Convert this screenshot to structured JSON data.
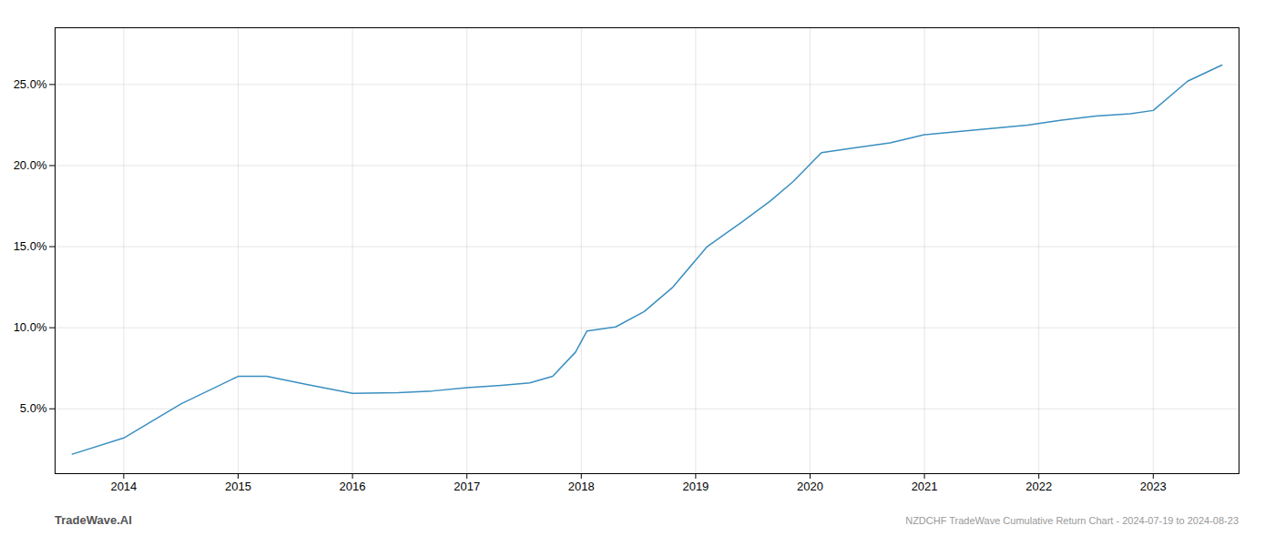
{
  "chart_data": {
    "type": "line",
    "title": "NZDCHF TradeWave Cumulative Return Chart - 2024-07-19 to 2024-08-23",
    "annotations": [
      "TradeWave.AI"
    ],
    "x": [
      2013.55,
      2014.0,
      2014.5,
      2015.0,
      2015.25,
      2015.6,
      2016.0,
      2016.4,
      2016.7,
      2017.0,
      2017.3,
      2017.55,
      2017.75,
      2017.95,
      2018.05,
      2018.3,
      2018.55,
      2018.8,
      2019.1,
      2019.4,
      2019.65,
      2019.85,
      2020.1,
      2020.4,
      2020.7,
      2021.0,
      2021.3,
      2021.6,
      2021.9,
      2022.2,
      2022.5,
      2022.8,
      2023.0,
      2023.3,
      2023.6
    ],
    "values": [
      2.2,
      3.2,
      5.3,
      7.0,
      7.0,
      6.5,
      5.95,
      6.0,
      6.1,
      6.3,
      6.45,
      6.6,
      7.0,
      8.5,
      9.8,
      10.05,
      11.0,
      12.5,
      15.0,
      16.5,
      17.8,
      19.0,
      20.8,
      21.1,
      21.4,
      21.9,
      22.1,
      22.3,
      22.5,
      22.8,
      23.05,
      23.2,
      23.4,
      25.2,
      26.2
    ],
    "color": "#3a8fc0",
    "xlim": [
      2013.4,
      2023.75
    ],
    "ylim": [
      1.0,
      28.5
    ],
    "xticks": [
      2014,
      2015,
      2016,
      2017,
      2018,
      2019,
      2020,
      2021,
      2022,
      2023
    ],
    "yticks": [
      {
        "value": 5.0,
        "label": "5.0%"
      },
      {
        "value": 10.0,
        "label": "10.0%"
      },
      {
        "value": 15.0,
        "label": "15.0%"
      },
      {
        "value": 20.0,
        "label": "20.0%"
      },
      {
        "value": 25.0,
        "label": "25.0%"
      }
    ],
    "grid": true
  }
}
